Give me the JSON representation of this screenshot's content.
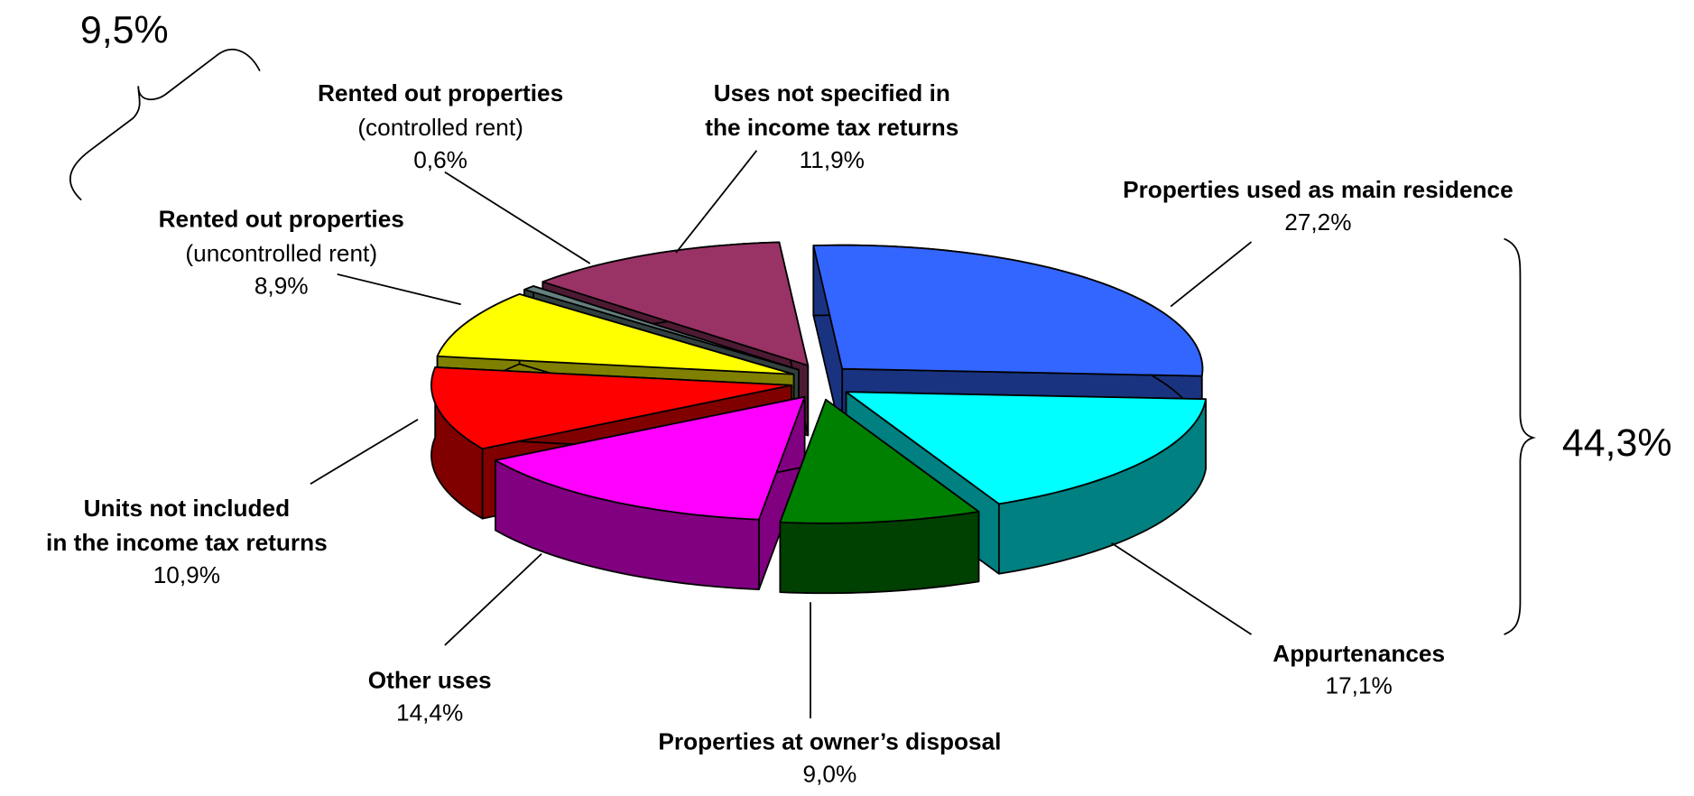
{
  "chart_data": {
    "type": "pie3d",
    "categories": [
      [
        "Properties used as main residence"
      ],
      [
        "Appurtenances"
      ],
      [
        "Properties at owner’s disposal"
      ],
      [
        "Other uses"
      ],
      [
        "Units not included",
        "in the income tax returns"
      ],
      [
        "Rented out properties"
      ],
      [
        "Rented out properties"
      ],
      [
        "Uses not specified in",
        "the income tax returns"
      ]
    ],
    "category_notes": [
      null,
      null,
      null,
      null,
      null,
      "(uncontrolled rent)",
      "(controlled rent)",
      null
    ],
    "values": [
      27.2,
      17.1,
      9.0,
      14.4,
      10.9,
      8.9,
      0.6,
      11.9
    ],
    "value_labels": [
      "27,2%",
      "17,1%",
      "9,0%",
      "14,4%",
      "10,9%",
      "8,9%",
      "0,6%",
      "11,9%"
    ],
    "colors": [
      "#3366ff",
      "#00ffff",
      "#008000",
      "#ff00ff",
      "#ff0000",
      "#ffff00",
      "#668080",
      "#993366"
    ],
    "annotations": [
      {
        "text": "9,5%"
      },
      {
        "text": "44,3%"
      }
    ]
  }
}
